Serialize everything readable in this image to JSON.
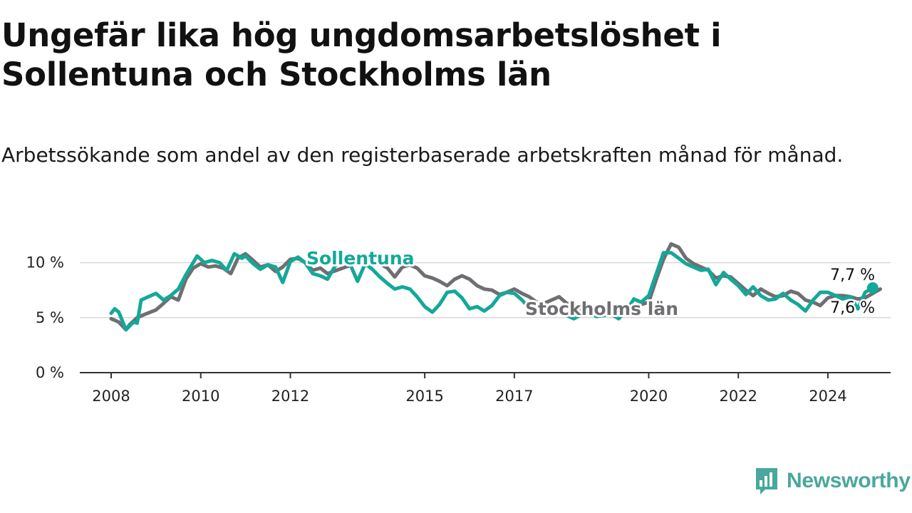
{
  "title": "Ungefär lika hög ungdomsarbetslöshet i Sollentuna och Stockholms län",
  "subtitle": "Arbetssökande som andel av den registerbaserade arbetskraften månad för månad.",
  "brand": {
    "name": "Newsworthy",
    "logo_icon": "chart-bubble-icon"
  },
  "colors": {
    "sollentuna": "#14a898",
    "stockholm": "#6e6e73",
    "grid": "#d9d9d9",
    "axis": "#333333",
    "brand": "#49a89b"
  },
  "chart_data": {
    "type": "line",
    "title": "Ungefär lika hög ungdomsarbetslöshet i Sollentuna och Stockholms län",
    "xlabel": "",
    "ylabel": "",
    "ylim": [
      0,
      12.5
    ],
    "xlim": [
      2007.3,
      2025.4
    ],
    "y_ticks": [
      {
        "value": 0,
        "label": "0 %"
      },
      {
        "value": 5,
        "label": "5 %"
      },
      {
        "value": 10,
        "label": "10 %"
      }
    ],
    "x_ticks": [
      {
        "value": 2008,
        "label": "2008"
      },
      {
        "value": 2010,
        "label": "2010"
      },
      {
        "value": 2012,
        "label": "2012"
      },
      {
        "value": 2015,
        "label": "2015"
      },
      {
        "value": 2017,
        "label": "2017"
      },
      {
        "value": 2020,
        "label": "2020"
      },
      {
        "value": 2022,
        "label": "2022"
      },
      {
        "value": 2024,
        "label": "2024"
      }
    ],
    "series": [
      {
        "name": "Stockholms län",
        "label": "Stockholms län",
        "end_label": "7,6 %",
        "points": [
          [
            2008.0,
            4.9
          ],
          [
            2008.17,
            4.6
          ],
          [
            2008.33,
            3.9
          ],
          [
            2008.42,
            4.4
          ],
          [
            2008.58,
            5.0
          ],
          [
            2008.75,
            5.3
          ],
          [
            2009.0,
            5.7
          ],
          [
            2009.17,
            6.3
          ],
          [
            2009.33,
            6.9
          ],
          [
            2009.5,
            6.6
          ],
          [
            2009.67,
            8.5
          ],
          [
            2009.83,
            9.5
          ],
          [
            2010.0,
            9.9
          ],
          [
            2010.17,
            9.6
          ],
          [
            2010.33,
            9.7
          ],
          [
            2010.5,
            9.5
          ],
          [
            2010.67,
            9.0
          ],
          [
            2010.83,
            10.4
          ],
          [
            2011.0,
            10.8
          ],
          [
            2011.17,
            10.2
          ],
          [
            2011.33,
            9.6
          ],
          [
            2011.5,
            9.8
          ],
          [
            2011.67,
            9.2
          ],
          [
            2011.83,
            9.6
          ],
          [
            2012.0,
            10.3
          ],
          [
            2012.17,
            10.4
          ],
          [
            2012.33,
            10.0
          ],
          [
            2012.5,
            9.3
          ],
          [
            2012.67,
            9.5
          ],
          [
            2012.83,
            9.0
          ],
          [
            2013.5,
            10.0
          ],
          [
            2013.67,
            10.5
          ],
          [
            2013.83,
            9.8
          ],
          [
            2014.0,
            9.9
          ],
          [
            2014.17,
            9.5
          ],
          [
            2014.33,
            8.7
          ],
          [
            2014.5,
            9.6
          ],
          [
            2014.67,
            9.8
          ],
          [
            2014.83,
            9.5
          ],
          [
            2015.0,
            8.8
          ],
          [
            2015.17,
            8.6
          ],
          [
            2015.33,
            8.3
          ],
          [
            2015.5,
            7.9
          ],
          [
            2015.67,
            8.5
          ],
          [
            2015.83,
            8.8
          ],
          [
            2016.0,
            8.5
          ],
          [
            2016.17,
            7.9
          ],
          [
            2016.33,
            7.6
          ],
          [
            2016.5,
            7.5
          ],
          [
            2016.67,
            7.1
          ],
          [
            2016.83,
            7.3
          ],
          [
            2017.0,
            7.6
          ],
          [
            2017.17,
            7.2
          ],
          [
            2017.33,
            6.9
          ],
          [
            2017.5,
            6.4
          ],
          [
            2017.67,
            6.3
          ],
          [
            2017.83,
            6.6
          ],
          [
            2018.0,
            6.9
          ],
          [
            2018.17,
            6.3
          ],
          [
            2018.33,
            5.9
          ],
          [
            2018.5,
            5.6
          ],
          [
            2018.67,
            5.5
          ],
          [
            2018.83,
            5.9
          ],
          [
            2019.0,
            6.0
          ],
          [
            2019.17,
            5.6
          ],
          [
            2019.33,
            5.4
          ],
          [
            2019.5,
            5.6
          ],
          [
            2019.67,
            5.7
          ],
          [
            2019.83,
            6.2
          ],
          [
            2020.0,
            6.4
          ],
          [
            2020.17,
            8.5
          ],
          [
            2020.33,
            10.3
          ],
          [
            2020.5,
            11.7
          ],
          [
            2020.67,
            11.4
          ],
          [
            2020.83,
            10.4
          ],
          [
            2021.0,
            9.9
          ],
          [
            2021.17,
            9.6
          ],
          [
            2021.33,
            9.3
          ],
          [
            2021.5,
            8.6
          ],
          [
            2021.67,
            8.8
          ],
          [
            2021.83,
            8.7
          ],
          [
            2022.0,
            8.1
          ],
          [
            2022.17,
            7.5
          ],
          [
            2022.33,
            7.0
          ],
          [
            2022.5,
            7.6
          ],
          [
            2022.67,
            7.2
          ],
          [
            2022.83,
            6.9
          ],
          [
            2023.0,
            7.0
          ],
          [
            2023.17,
            7.4
          ],
          [
            2023.33,
            7.2
          ],
          [
            2023.5,
            6.6
          ],
          [
            2023.67,
            6.4
          ],
          [
            2023.83,
            6.1
          ],
          [
            2024.0,
            6.8
          ],
          [
            2024.17,
            7.0
          ],
          [
            2024.33,
            7.0
          ],
          [
            2024.5,
            6.9
          ],
          [
            2024.67,
            6.7
          ],
          [
            2024.83,
            6.8
          ],
          [
            2025.0,
            7.2
          ],
          [
            2025.17,
            7.6
          ]
        ]
      },
      {
        "name": "Sollentuna",
        "label": "Sollentuna",
        "end_label": "7,7 %",
        "points": [
          [
            2008.0,
            5.4
          ],
          [
            2008.08,
            5.8
          ],
          [
            2008.17,
            5.5
          ],
          [
            2008.33,
            3.9
          ],
          [
            2008.5,
            4.6
          ],
          [
            2008.58,
            4.5
          ],
          [
            2008.67,
            6.6
          ],
          [
            2008.83,
            6.9
          ],
          [
            2009.0,
            7.2
          ],
          [
            2009.17,
            6.6
          ],
          [
            2009.33,
            7.0
          ],
          [
            2009.5,
            7.6
          ],
          [
            2009.67,
            8.9
          ],
          [
            2009.83,
            10.0
          ],
          [
            2009.92,
            10.6
          ],
          [
            2010.08,
            10.0
          ],
          [
            2010.25,
            10.2
          ],
          [
            2010.42,
            10.0
          ],
          [
            2010.58,
            9.3
          ],
          [
            2010.75,
            10.8
          ],
          [
            2010.92,
            10.4
          ],
          [
            2011.0,
            10.6
          ],
          [
            2011.17,
            9.9
          ],
          [
            2011.33,
            9.4
          ],
          [
            2011.5,
            9.8
          ],
          [
            2011.67,
            9.6
          ],
          [
            2011.83,
            8.2
          ],
          [
            2012.0,
            10.1
          ],
          [
            2012.17,
            10.5
          ],
          [
            2012.33,
            10.0
          ],
          [
            2012.5,
            9.0
          ],
          [
            2012.67,
            8.8
          ],
          [
            2012.83,
            8.5
          ],
          [
            2013.0,
            9.7
          ],
          [
            2013.17,
            10.3
          ],
          [
            2013.33,
            9.9
          ],
          [
            2013.5,
            8.3
          ],
          [
            2013.67,
            9.9
          ],
          [
            2013.83,
            9.4
          ],
          [
            2014.0,
            8.7
          ],
          [
            2014.17,
            8.1
          ],
          [
            2014.33,
            7.6
          ],
          [
            2014.5,
            7.8
          ],
          [
            2014.67,
            7.6
          ],
          [
            2014.83,
            6.9
          ],
          [
            2015.0,
            6.0
          ],
          [
            2015.17,
            5.5
          ],
          [
            2015.33,
            6.2
          ],
          [
            2015.5,
            7.3
          ],
          [
            2015.67,
            7.4
          ],
          [
            2015.83,
            6.8
          ],
          [
            2016.0,
            5.8
          ],
          [
            2016.17,
            6.0
          ],
          [
            2016.33,
            5.6
          ],
          [
            2016.5,
            6.1
          ],
          [
            2016.67,
            7.0
          ],
          [
            2016.83,
            7.3
          ],
          [
            2017.0,
            7.2
          ],
          [
            2017.17,
            6.6
          ],
          [
            2017.33,
            5.9
          ],
          [
            2017.5,
            6.0
          ],
          [
            2017.67,
            5.6
          ],
          [
            2017.83,
            5.5
          ],
          [
            2018.0,
            5.8
          ],
          [
            2018.17,
            5.2
          ],
          [
            2018.33,
            4.9
          ],
          [
            2018.5,
            5.3
          ],
          [
            2018.67,
            5.6
          ],
          [
            2018.83,
            5.1
          ],
          [
            2019.0,
            5.2
          ],
          [
            2019.17,
            5.3
          ],
          [
            2019.33,
            4.9
          ],
          [
            2019.5,
            5.6
          ],
          [
            2019.67,
            6.7
          ],
          [
            2019.83,
            6.4
          ],
          [
            2020.0,
            7.0
          ],
          [
            2020.17,
            9.0
          ],
          [
            2020.33,
            10.9
          ],
          [
            2020.5,
            10.9
          ],
          [
            2020.67,
            10.4
          ],
          [
            2020.83,
            9.9
          ],
          [
            2021.0,
            9.6
          ],
          [
            2021.17,
            9.3
          ],
          [
            2021.33,
            9.4
          ],
          [
            2021.5,
            8.0
          ],
          [
            2021.67,
            9.1
          ],
          [
            2021.83,
            8.5
          ],
          [
            2022.0,
            7.9
          ],
          [
            2022.17,
            7.1
          ],
          [
            2022.33,
            7.8
          ],
          [
            2022.5,
            7.0
          ],
          [
            2022.67,
            6.6
          ],
          [
            2022.83,
            6.7
          ],
          [
            2023.0,
            7.2
          ],
          [
            2023.17,
            6.6
          ],
          [
            2023.33,
            6.2
          ],
          [
            2023.5,
            5.6
          ],
          [
            2023.67,
            6.6
          ],
          [
            2023.83,
            7.3
          ],
          [
            2024.0,
            7.3
          ],
          [
            2024.17,
            7.0
          ],
          [
            2024.33,
            6.7
          ],
          [
            2024.5,
            6.9
          ],
          [
            2024.67,
            5.8
          ],
          [
            2024.83,
            7.3
          ],
          [
            2025.0,
            7.7
          ]
        ]
      }
    ]
  }
}
